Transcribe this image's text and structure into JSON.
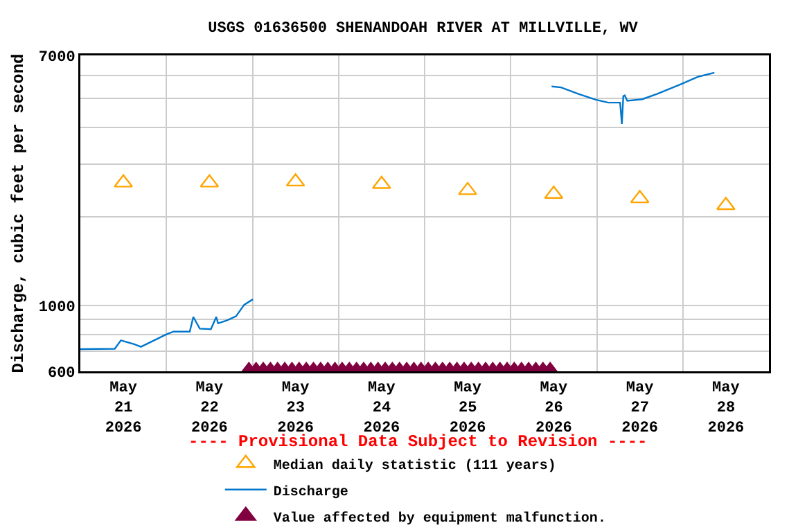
{
  "chart_data": {
    "type": "line",
    "title": "USGS 01636500 SHENANDOAH RIVER AT MILLVILLE, WV",
    "ylabel": "Discharge, cubic feet per second",
    "annotations": [
      "---- Provisional Data Subject to Revision ----"
    ],
    "log": "y",
    "grid": true,
    "legend": "bottom",
    "xlim": [
      "2026-05-21T00:00",
      "2026-05-29T00:00"
    ],
    "xticks": [
      {
        "value": "2026-05-21T12:00",
        "label": "May\n21\n2026"
      },
      {
        "value": "2026-05-22T12:00",
        "label": "May\n22\n2026"
      },
      {
        "value": "2026-05-23T12:00",
        "label": "May\n23\n2026"
      },
      {
        "value": "2026-05-24T12:00",
        "label": "May\n24\n2026"
      },
      {
        "value": "2026-05-25T12:00",
        "label": "May\n25\n2026"
      },
      {
        "value": "2026-05-26T12:00",
        "label": "May\n26\n2026"
      },
      {
        "value": "2026-05-27T12:00",
        "label": "May\n27\n2026"
      },
      {
        "value": "2026-05-28T12:00",
        "label": "May\n28\n2026"
      },
      {
        "value": "2026-05-22T00:00",
        "label": null
      },
      {
        "value": "2026-05-23T00:00",
        "label": null
      },
      {
        "value": "2026-05-24T00:00",
        "label": null
      },
      {
        "value": "2026-05-25T00:00",
        "label": null
      },
      {
        "value": "2026-05-26T00:00",
        "label": null
      },
      {
        "value": "2026-05-27T00:00",
        "label": null
      },
      {
        "value": "2026-05-28T00:00",
        "label": null
      }
    ],
    "ylim": [
      600,
      7000
    ],
    "yticks": [
      600,
      1000,
      7000,
      {
        "value": 700,
        "label": null
      },
      {
        "value": 800,
        "label": null
      },
      {
        "value": 900,
        "label": null
      },
      {
        "value": 2000,
        "label": null
      },
      {
        "value": 3000,
        "label": null
      },
      {
        "value": 4000,
        "label": null
      },
      {
        "value": 5000,
        "label": null
      },
      {
        "value": 6000,
        "label": null
      }
    ],
    "series": [
      {
        "name": "Median daily statistic (111 years)",
        "type": "scatter",
        "marker": "triangle",
        "color": "#ffa500",
        "x": [
          "2026-05-21T12:00",
          "2026-05-22T12:00",
          "2026-05-23T12:00",
          "2026-05-24T12:00",
          "2026-05-25T12:00",
          "2026-05-26T12:00",
          "2026-05-27T12:00",
          "2026-05-28T12:00"
        ],
        "values": [
          2600,
          2600,
          2620,
          2570,
          2450,
          2380,
          2300,
          2180
        ]
      },
      {
        "name": "Discharge",
        "color": "#0077cc",
        "x": [
          "2026-05-21T00:00",
          "2026-05-21T09:36",
          "2026-05-21T11:18",
          "2026-05-21T15:00",
          "2026-05-21T16:54",
          "2026-05-22T00:00",
          "2026-05-22T02:00",
          "2026-05-22T06:30",
          "2026-05-22T07:30",
          "2026-05-22T09:18",
          "2026-05-22T12:24",
          "2026-05-22T13:54",
          "2026-05-22T14:24",
          "2026-05-22T16:48",
          "2026-05-22T19:24",
          "2026-05-22T21:42",
          "2026-05-23T00:06",
          "2026-05-24T12:00",
          "2026-05-26T11:24",
          "2026-05-26T14:00",
          "2026-05-26T18:54",
          "2026-05-26T23:42",
          "2026-05-27T03:12",
          "2026-05-27T06:30",
          "2026-05-27T07:00",
          "2026-05-27T07:24",
          "2026-05-27T07:48",
          "2026-05-27T08:30",
          "2026-05-27T12:42",
          "2026-05-27T16:48",
          "2026-05-27T23:12",
          "2026-05-28T04:12",
          "2026-05-28T08:48"
        ],
        "values": [
          713,
          715,
          763,
          741,
          726,
          800,
          817,
          817,
          916,
          836,
          832,
          916,
          871,
          891,
          920,
          1007,
          1050,
          null,
          5500,
          5460,
          5190,
          4960,
          4850,
          4850,
          4110,
          5100,
          5130,
          4920,
          4980,
          5190,
          5580,
          5930,
          6120
        ]
      },
      {
        "name": "Value affected by equipment malfunction.",
        "type": "scatter",
        "marker": "triangle",
        "color": "#800040",
        "x": [
          "2026-05-22T23:00",
          "2026-05-23T01:00",
          "2026-05-23T03:00",
          "2026-05-23T05:00",
          "2026-05-23T07:00",
          "2026-05-23T09:00",
          "2026-05-23T11:00",
          "2026-05-23T13:00",
          "2026-05-23T15:00",
          "2026-05-23T17:00",
          "2026-05-23T19:00",
          "2026-05-23T21:00",
          "2026-05-23T23:00",
          "2026-05-24T01:00",
          "2026-05-24T03:00",
          "2026-05-24T05:00",
          "2026-05-24T07:00",
          "2026-05-24T09:00",
          "2026-05-24T11:00",
          "2026-05-24T13:00",
          "2026-05-24T15:00",
          "2026-05-24T17:00",
          "2026-05-24T19:00",
          "2026-05-24T21:00",
          "2026-05-24T23:00",
          "2026-05-25T01:00",
          "2026-05-25T03:00",
          "2026-05-25T05:00",
          "2026-05-25T07:00",
          "2026-05-25T09:00",
          "2026-05-25T11:00",
          "2026-05-25T13:00",
          "2026-05-25T15:00",
          "2026-05-25T17:00",
          "2026-05-25T19:00",
          "2026-05-25T21:00",
          "2026-05-25T23:00",
          "2026-05-26T01:00",
          "2026-05-26T03:00",
          "2026-05-26T05:00",
          "2026-05-26T07:00",
          "2026-05-26T09:00",
          "2026-05-26T11:00"
        ],
        "values": [
          600,
          600,
          600,
          600,
          600,
          600,
          600,
          600,
          600,
          600,
          600,
          600,
          600,
          600,
          600,
          600,
          600,
          600,
          600,
          600,
          600,
          600,
          600,
          600,
          600,
          600,
          600,
          600,
          600,
          600,
          600,
          600,
          600,
          600,
          600,
          600,
          600,
          600,
          600,
          600,
          600,
          600,
          600
        ]
      }
    ]
  }
}
